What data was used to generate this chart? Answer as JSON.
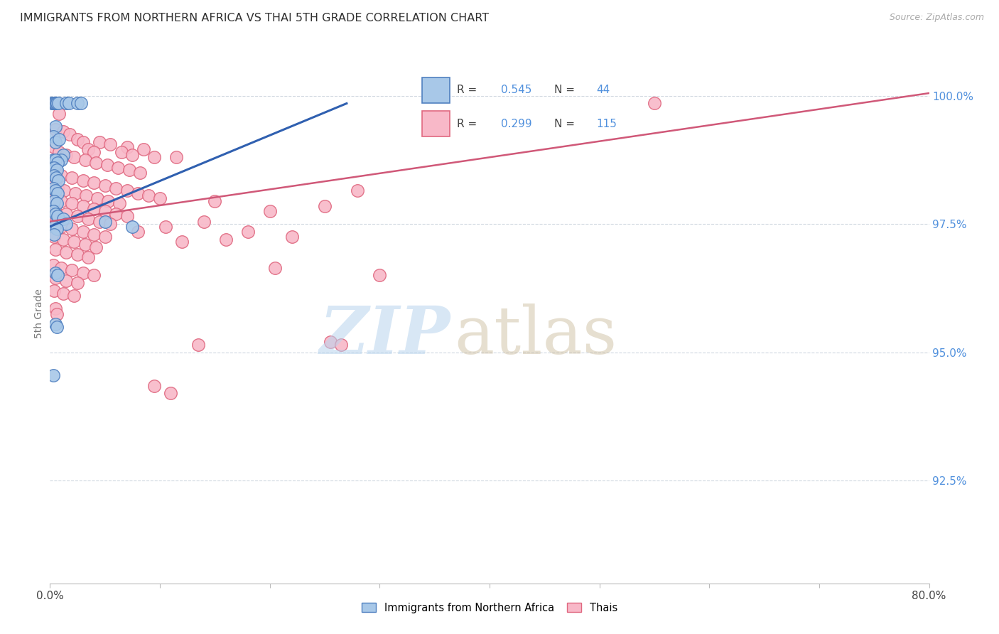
{
  "title": "IMMIGRANTS FROM NORTHERN AFRICA VS THAI 5TH GRADE CORRELATION CHART",
  "source": "Source: ZipAtlas.com",
  "ylabel": "5th Grade",
  "y_tick_labels": [
    "92.5%",
    "95.0%",
    "97.5%",
    "100.0%"
  ],
  "y_tick_values": [
    92.5,
    95.0,
    97.5,
    100.0
  ],
  "xlim": [
    0.0,
    80.0
  ],
  "ylim": [
    90.5,
    101.0
  ],
  "blue_scatter": [
    [
      0.15,
      99.85
    ],
    [
      0.25,
      99.85
    ],
    [
      0.35,
      99.85
    ],
    [
      0.45,
      99.85
    ],
    [
      0.55,
      99.85
    ],
    [
      0.65,
      99.85
    ],
    [
      0.75,
      99.85
    ],
    [
      1.5,
      99.85
    ],
    [
      1.7,
      99.85
    ],
    [
      2.5,
      99.85
    ],
    [
      2.8,
      99.85
    ],
    [
      0.5,
      99.4
    ],
    [
      0.3,
      99.2
    ],
    [
      0.5,
      99.1
    ],
    [
      0.8,
      99.15
    ],
    [
      1.2,
      98.85
    ],
    [
      1.0,
      98.75
    ],
    [
      0.3,
      98.75
    ],
    [
      0.5,
      98.75
    ],
    [
      0.7,
      98.7
    ],
    [
      0.4,
      98.6
    ],
    [
      0.6,
      98.55
    ],
    [
      0.35,
      98.45
    ],
    [
      0.55,
      98.4
    ],
    [
      0.75,
      98.35
    ],
    [
      0.3,
      98.2
    ],
    [
      0.5,
      98.15
    ],
    [
      0.7,
      98.1
    ],
    [
      0.4,
      97.95
    ],
    [
      0.6,
      97.9
    ],
    [
      0.3,
      97.75
    ],
    [
      0.5,
      97.7
    ],
    [
      0.7,
      97.65
    ],
    [
      1.2,
      97.6
    ],
    [
      1.5,
      97.5
    ],
    [
      0.4,
      97.45
    ],
    [
      0.6,
      97.4
    ],
    [
      0.35,
      97.3
    ],
    [
      5.0,
      97.55
    ],
    [
      7.5,
      97.45
    ],
    [
      0.5,
      96.55
    ],
    [
      0.7,
      96.5
    ],
    [
      0.5,
      95.55
    ],
    [
      0.65,
      95.5
    ],
    [
      0.3,
      94.55
    ]
  ],
  "pink_scatter": [
    [
      0.8,
      99.65
    ],
    [
      0.5,
      99.35
    ],
    [
      1.2,
      99.3
    ],
    [
      1.8,
      99.25
    ],
    [
      2.5,
      99.15
    ],
    [
      3.0,
      99.1
    ],
    [
      4.5,
      99.1
    ],
    [
      5.5,
      99.05
    ],
    [
      7.0,
      99.0
    ],
    [
      8.5,
      98.95
    ],
    [
      3.5,
      98.95
    ],
    [
      4.0,
      98.9
    ],
    [
      6.5,
      98.9
    ],
    [
      7.5,
      98.85
    ],
    [
      9.5,
      98.8
    ],
    [
      11.5,
      98.8
    ],
    [
      0.4,
      99.0
    ],
    [
      0.8,
      98.9
    ],
    [
      1.5,
      98.85
    ],
    [
      2.2,
      98.8
    ],
    [
      3.2,
      98.75
    ],
    [
      4.2,
      98.7
    ],
    [
      5.2,
      98.65
    ],
    [
      6.2,
      98.6
    ],
    [
      7.2,
      98.55
    ],
    [
      8.2,
      98.5
    ],
    [
      0.5,
      98.5
    ],
    [
      1.0,
      98.45
    ],
    [
      2.0,
      98.4
    ],
    [
      3.0,
      98.35
    ],
    [
      4.0,
      98.3
    ],
    [
      5.0,
      98.25
    ],
    [
      6.0,
      98.2
    ],
    [
      7.0,
      98.15
    ],
    [
      8.0,
      98.1
    ],
    [
      9.0,
      98.05
    ],
    [
      10.0,
      98.0
    ],
    [
      0.3,
      98.25
    ],
    [
      0.7,
      98.2
    ],
    [
      1.3,
      98.15
    ],
    [
      2.3,
      98.1
    ],
    [
      3.3,
      98.05
    ],
    [
      4.3,
      98.0
    ],
    [
      5.3,
      97.95
    ],
    [
      6.3,
      97.9
    ],
    [
      0.4,
      98.0
    ],
    [
      1.0,
      97.95
    ],
    [
      2.0,
      97.9
    ],
    [
      3.0,
      97.85
    ],
    [
      4.0,
      97.8
    ],
    [
      5.0,
      97.75
    ],
    [
      6.0,
      97.7
    ],
    [
      7.0,
      97.65
    ],
    [
      0.5,
      97.75
    ],
    [
      1.5,
      97.7
    ],
    [
      2.5,
      97.65
    ],
    [
      3.5,
      97.6
    ],
    [
      4.5,
      97.55
    ],
    [
      5.5,
      97.5
    ],
    [
      0.3,
      97.5
    ],
    [
      1.0,
      97.45
    ],
    [
      2.0,
      97.4
    ],
    [
      3.0,
      97.35
    ],
    [
      4.0,
      97.3
    ],
    [
      5.0,
      97.25
    ],
    [
      0.4,
      97.25
    ],
    [
      1.2,
      97.2
    ],
    [
      2.2,
      97.15
    ],
    [
      3.2,
      97.1
    ],
    [
      4.2,
      97.05
    ],
    [
      0.5,
      97.0
    ],
    [
      1.5,
      96.95
    ],
    [
      2.5,
      96.9
    ],
    [
      3.5,
      96.85
    ],
    [
      0.3,
      96.7
    ],
    [
      1.0,
      96.65
    ],
    [
      2.0,
      96.6
    ],
    [
      3.0,
      96.55
    ],
    [
      4.0,
      96.5
    ],
    [
      0.5,
      96.45
    ],
    [
      1.5,
      96.4
    ],
    [
      2.5,
      96.35
    ],
    [
      0.4,
      96.2
    ],
    [
      1.2,
      96.15
    ],
    [
      2.2,
      96.1
    ],
    [
      0.5,
      95.85
    ],
    [
      0.65,
      95.75
    ],
    [
      8.0,
      97.35
    ],
    [
      12.0,
      97.15
    ],
    [
      18.0,
      97.35
    ],
    [
      22.0,
      97.25
    ],
    [
      15.0,
      97.95
    ],
    [
      20.0,
      97.75
    ],
    [
      25.0,
      97.85
    ],
    [
      14.0,
      97.55
    ],
    [
      10.5,
      97.45
    ],
    [
      16.0,
      97.2
    ],
    [
      28.0,
      98.15
    ],
    [
      55.0,
      99.85
    ],
    [
      20.5,
      96.65
    ],
    [
      30.0,
      96.5
    ],
    [
      13.5,
      95.15
    ],
    [
      25.5,
      95.2
    ],
    [
      26.5,
      95.15
    ],
    [
      9.5,
      94.35
    ],
    [
      11.0,
      94.2
    ]
  ],
  "blue_line": [
    [
      0.0,
      97.45
    ],
    [
      27.0,
      99.85
    ]
  ],
  "pink_line": [
    [
      0.0,
      97.55
    ],
    [
      80.0,
      100.05
    ]
  ],
  "watermark_zip": "ZIP",
  "watermark_atlas": "atlas",
  "blue_color": "#a8c8e8",
  "pink_color": "#f8b8c8",
  "blue_edge_color": "#5080c0",
  "pink_edge_color": "#e06880",
  "blue_line_color": "#3060b0",
  "pink_line_color": "#d05878",
  "grid_color": "#d0d8e0",
  "right_axis_color": "#5090dd",
  "title_color": "#303030",
  "legend_r_color": "#5090dd",
  "legend_n_color": "#5090dd"
}
